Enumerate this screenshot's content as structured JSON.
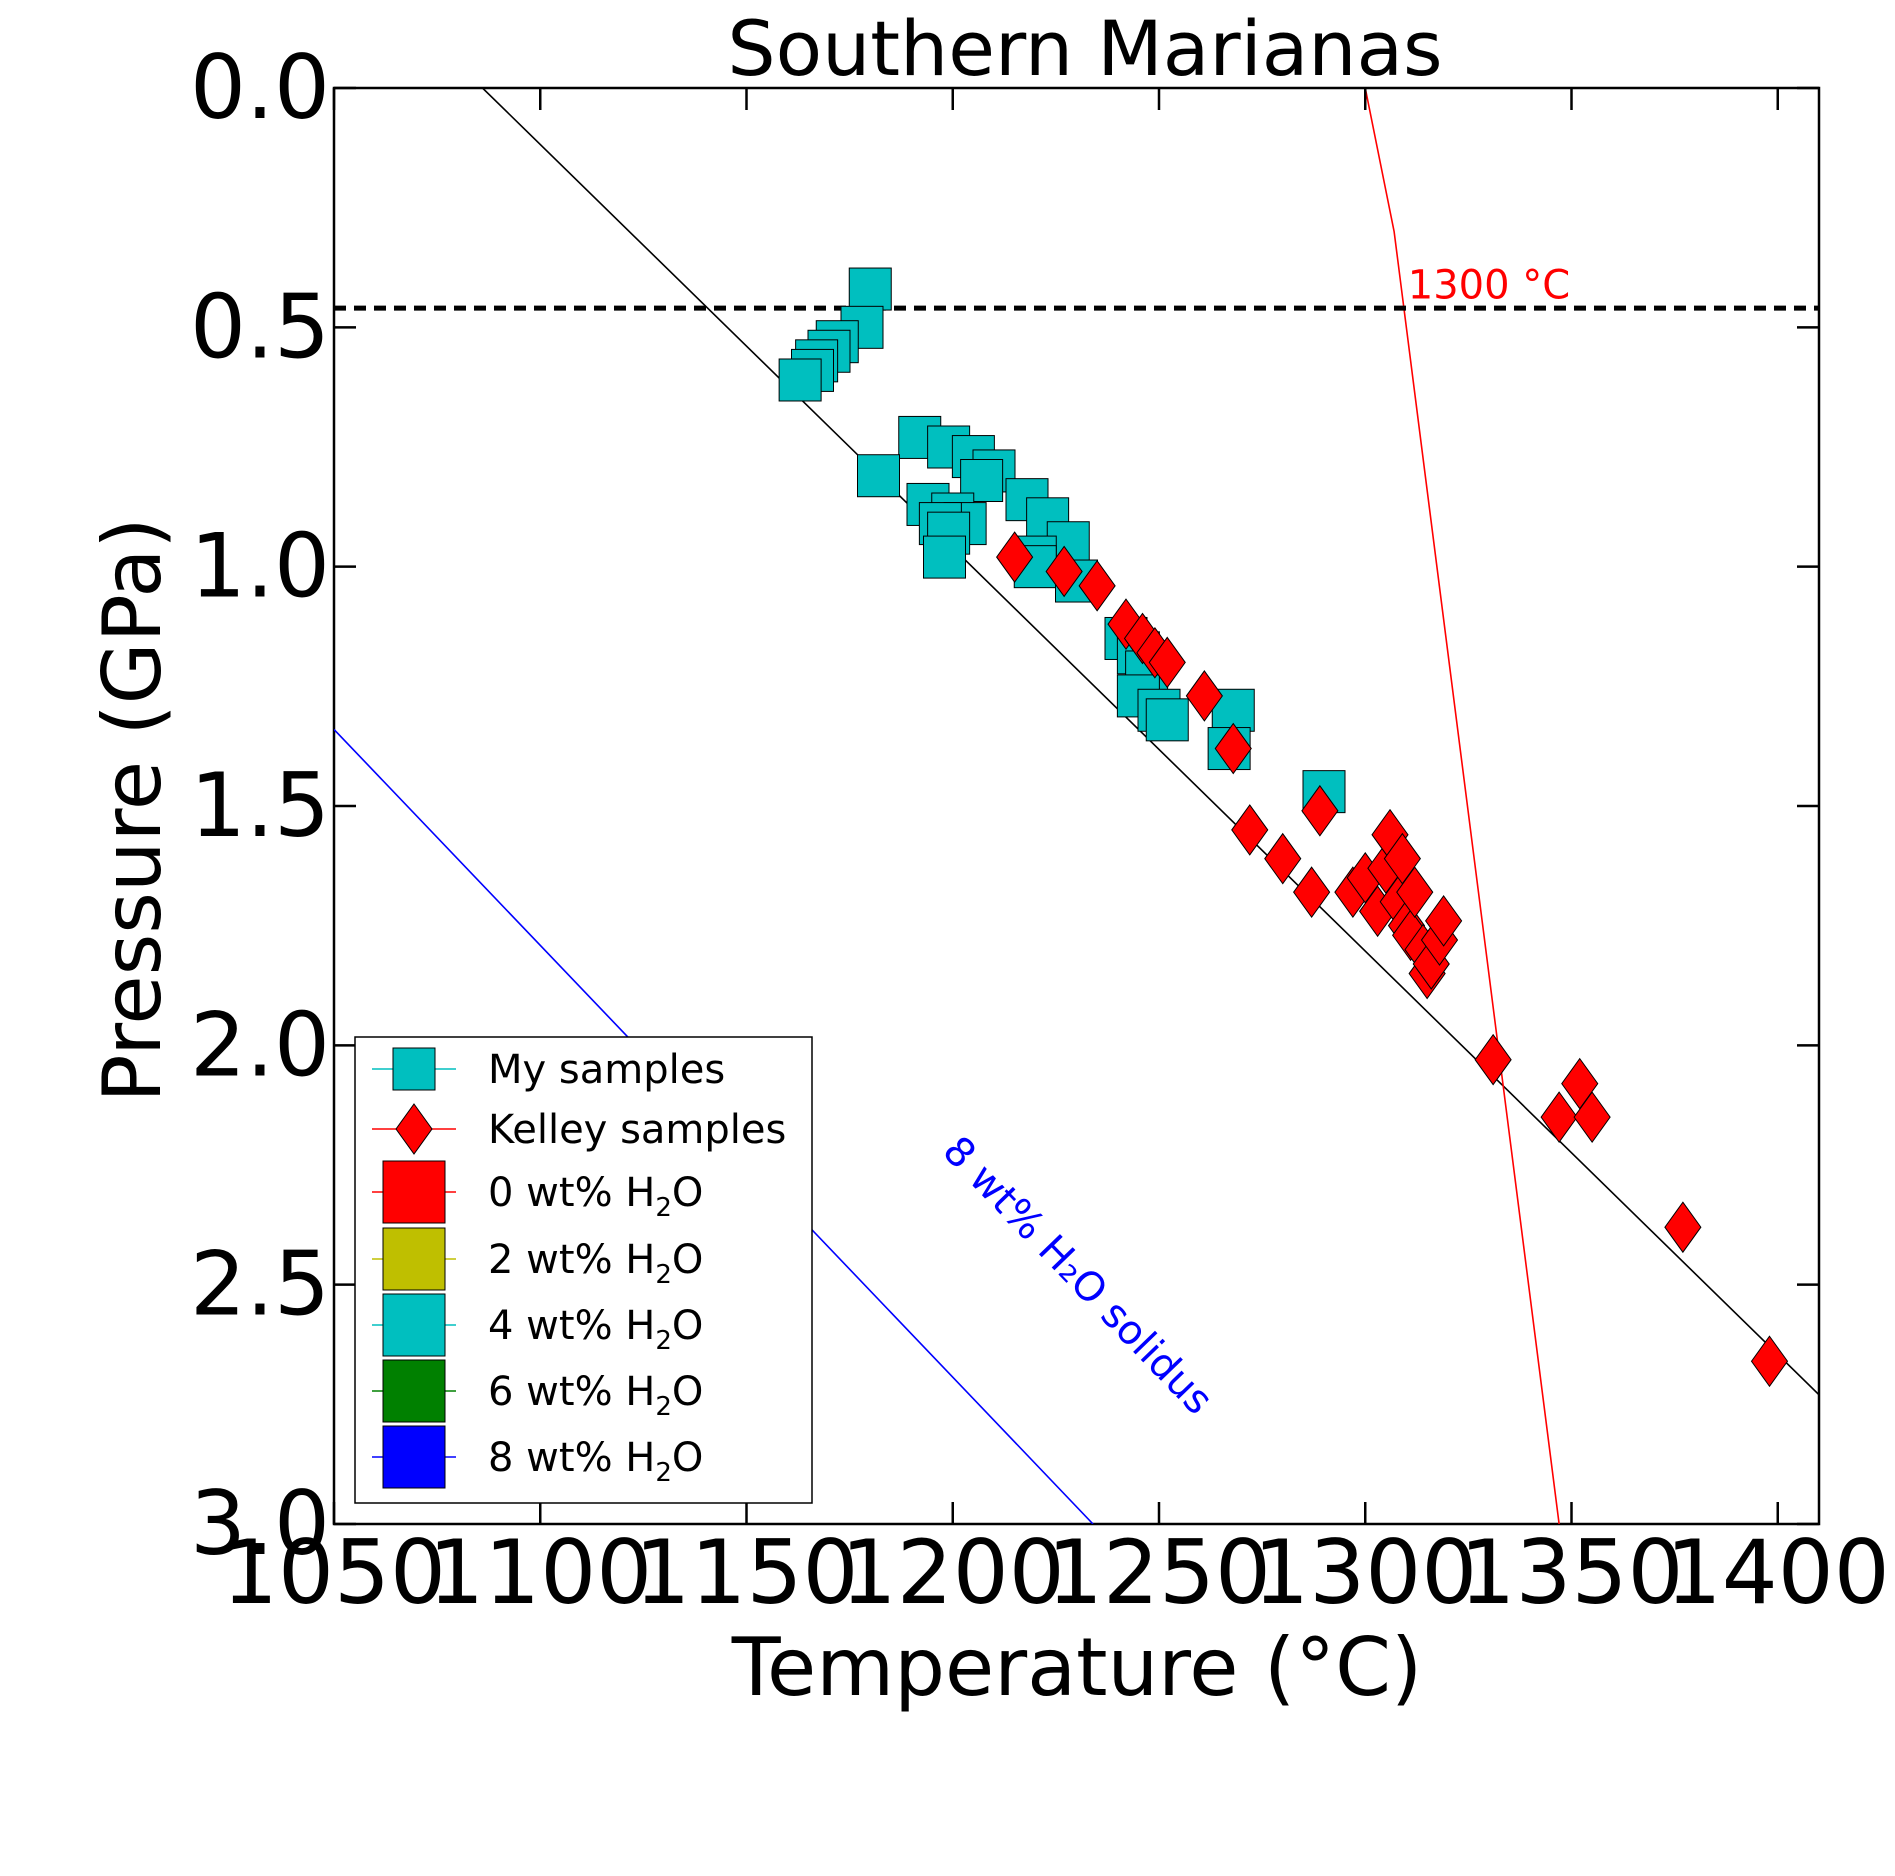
{
  "chart_data": {
    "type": "scatter",
    "title": "Southern Marianas",
    "xlabel": "Temperature (°C)",
    "ylabel": "Pressure (GPa)",
    "xlim": [
      1050,
      1410
    ],
    "ylim": [
      3.0,
      0.0
    ],
    "y_inverted": true,
    "grid": false,
    "legend_position": "lower-left",
    "xticks": [
      "1050",
      "1100",
      "1150",
      "1200",
      "1250",
      "1300",
      "1350",
      "1400"
    ],
    "xtick_values": [
      1050,
      1100,
      1150,
      1200,
      1250,
      1300,
      1350,
      1400
    ],
    "yticks": [
      "0.0",
      "0.5",
      "1.0",
      "1.5",
      "2.0",
      "2.5",
      "3.0"
    ],
    "ytick_values": [
      0.0,
      0.5,
      1.0,
      1.5,
      2.0,
      2.5,
      3.0
    ],
    "series": [
      {
        "name": "My samples",
        "marker": "square",
        "color": "#00bfbf",
        "points": [
          [
            1180,
            0.42
          ],
          [
            1178,
            0.5
          ],
          [
            1172,
            0.53
          ],
          [
            1170,
            0.55
          ],
          [
            1167,
            0.57
          ],
          [
            1166,
            0.59
          ],
          [
            1163,
            0.61
          ],
          [
            1192,
            0.73
          ],
          [
            1199,
            0.75
          ],
          [
            1205,
            0.77
          ],
          [
            1210,
            0.8
          ],
          [
            1207,
            0.82
          ],
          [
            1182,
            0.81
          ],
          [
            1218,
            0.86
          ],
          [
            1194,
            0.87
          ],
          [
            1200,
            0.89
          ],
          [
            1203,
            0.91
          ],
          [
            1197,
            0.91
          ],
          [
            1199,
            0.93
          ],
          [
            1223,
            0.9
          ],
          [
            1228,
            0.95
          ],
          [
            1220,
            0.98
          ],
          [
            1198,
            0.98
          ],
          [
            1220,
            1.0
          ],
          [
            1230,
            1.03
          ],
          [
            1242,
            1.15
          ],
          [
            1245,
            1.18
          ],
          [
            1247,
            1.22
          ],
          [
            1245,
            1.27
          ],
          [
            1250,
            1.3
          ],
          [
            1252,
            1.32
          ],
          [
            1268,
            1.3
          ],
          [
            1267,
            1.38
          ],
          [
            1290,
            1.47
          ]
        ]
      },
      {
        "name": "Kelley samples",
        "marker": "diamond",
        "color": "#ff0000",
        "points": [
          [
            1215,
            0.98
          ],
          [
            1227,
            1.01
          ],
          [
            1235,
            1.04
          ],
          [
            1242,
            1.12
          ],
          [
            1246,
            1.15
          ],
          [
            1249,
            1.18
          ],
          [
            1252,
            1.2
          ],
          [
            1261,
            1.27
          ],
          [
            1268,
            1.38
          ],
          [
            1272,
            1.55
          ],
          [
            1280,
            1.61
          ],
          [
            1287,
            1.68
          ],
          [
            1289,
            1.51
          ],
          [
            1297,
            1.68
          ],
          [
            1300,
            1.65
          ],
          [
            1303,
            1.72
          ],
          [
            1305,
            1.63
          ],
          [
            1306,
            1.56
          ],
          [
            1308,
            1.7
          ],
          [
            1309,
            1.61
          ],
          [
            1310,
            1.75
          ],
          [
            1311,
            1.77
          ],
          [
            1312,
            1.68
          ],
          [
            1314,
            1.8
          ],
          [
            1315,
            1.85
          ],
          [
            1316,
            1.83
          ],
          [
            1318,
            1.78
          ],
          [
            1319,
            1.74
          ],
          [
            1331,
            2.03
          ],
          [
            1347,
            2.15
          ],
          [
            1352,
            2.08
          ],
          [
            1355,
            2.15
          ],
          [
            1377,
            2.38
          ],
          [
            1398,
            2.66
          ]
        ]
      }
    ],
    "lines": [
      {
        "label": "",
        "color": "#000000",
        "style": "solid",
        "points": [
          [
            1086,
            0.0
          ],
          [
            1410,
            2.73
          ]
        ]
      },
      {
        "label": "8 wt% H₂O solidus",
        "color": "#0000ff",
        "style": "solid",
        "points": [
          [
            1050,
            1.34
          ],
          [
            1234,
            3.0
          ]
        ]
      },
      {
        "label": "1300 °C",
        "color": "#ff0000",
        "style": "solid",
        "points": [
          [
            1300,
            0.0
          ],
          [
            1307,
            0.3
          ],
          [
            1347,
            3.0
          ]
        ]
      },
      {
        "label": "",
        "color": "#000000",
        "style": "dashed",
        "points": [
          [
            1050,
            0.46
          ],
          [
            1410,
            0.46
          ]
        ]
      }
    ],
    "legend": [
      {
        "label": "My samples",
        "marker": "square",
        "color": "#00bfbf",
        "line_color": "#00bfbf"
      },
      {
        "label": "Kelley samples",
        "marker": "diamond",
        "color": "#ff0000",
        "line_color": "#ff0000"
      },
      {
        "label": "0 wt% H",
        "sub": "2",
        "suffix": "O",
        "marker": "bigsquare",
        "color": "#ff0000"
      },
      {
        "label": "2 wt% H",
        "sub": "2",
        "suffix": "O",
        "marker": "bigsquare",
        "color": "#bfbf00"
      },
      {
        "label": "4 wt% H",
        "sub": "2",
        "suffix": "O",
        "marker": "bigsquare",
        "color": "#00bfbf"
      },
      {
        "label": "6 wt% H",
        "sub": "2",
        "suffix": "O",
        "marker": "bigsquare",
        "color": "#008000"
      },
      {
        "label": "8 wt% H",
        "sub": "2",
        "suffix": "O",
        "marker": "bigsquare",
        "color": "#0000ff"
      }
    ],
    "annotations": {
      "isotherm_label": "1300 °C",
      "solidus_label": "8 wt% H₂O solidus"
    }
  }
}
